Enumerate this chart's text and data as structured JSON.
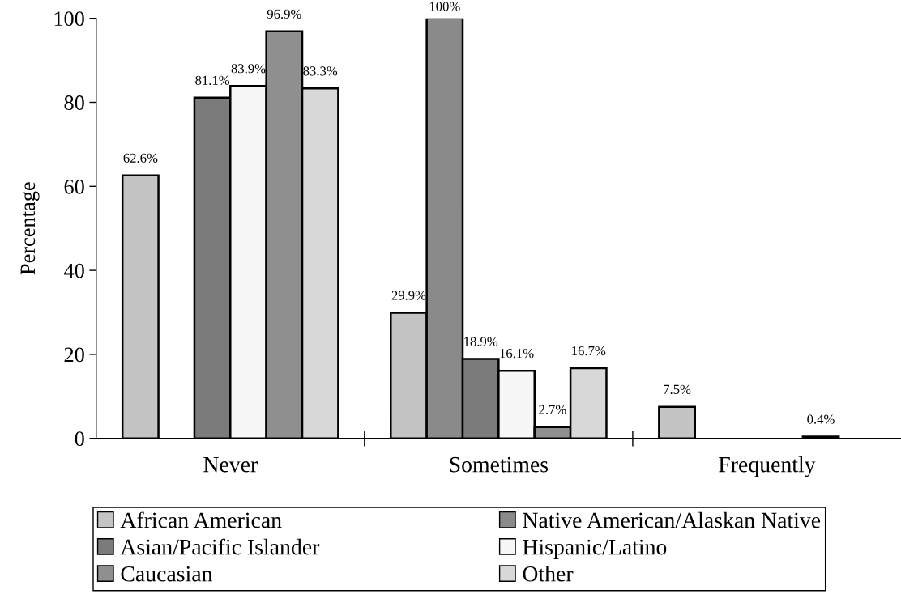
{
  "chart_data": {
    "type": "bar",
    "ylabel": "Percentage",
    "categories": [
      "Never",
      "Sometimes",
      "Frequently"
    ],
    "series": [
      {
        "name": "African American",
        "color": "#c4c4c4",
        "values": [
          62.6,
          29.9,
          7.5
        ],
        "value_labels": [
          "62.6%",
          "29.9%",
          "7.5%"
        ]
      },
      {
        "name": "Native American/Alaskan Native",
        "color": "#8a8a8a",
        "values": [
          null,
          100,
          null
        ],
        "value_labels": [
          null,
          "100%",
          null
        ]
      },
      {
        "name": "Asian/Pacific Islander",
        "color": "#7b7b7b",
        "values": [
          81.1,
          18.9,
          null
        ],
        "value_labels": [
          "81.1%",
          "18.9%",
          null
        ]
      },
      {
        "name": "Hispanic/Latino",
        "color": "#f7f7f7",
        "values": [
          83.9,
          16.1,
          null
        ],
        "value_labels": [
          "83.9%",
          "16.1%",
          null
        ]
      },
      {
        "name": "Caucasian",
        "color": "#8f8f8f",
        "values": [
          96.9,
          2.7,
          0.4
        ],
        "value_labels": [
          "96.9%",
          "2.7%",
          "0.4%"
        ]
      },
      {
        "name": "Other",
        "color": "#d8d8d8",
        "values": [
          83.3,
          16.7,
          null
        ],
        "value_labels": [
          "83.3%",
          "16.7%",
          null
        ]
      }
    ],
    "ylim": [
      0,
      100
    ],
    "yticks": [
      0,
      20,
      40,
      60,
      80,
      100
    ],
    "legend": "bottom"
  }
}
